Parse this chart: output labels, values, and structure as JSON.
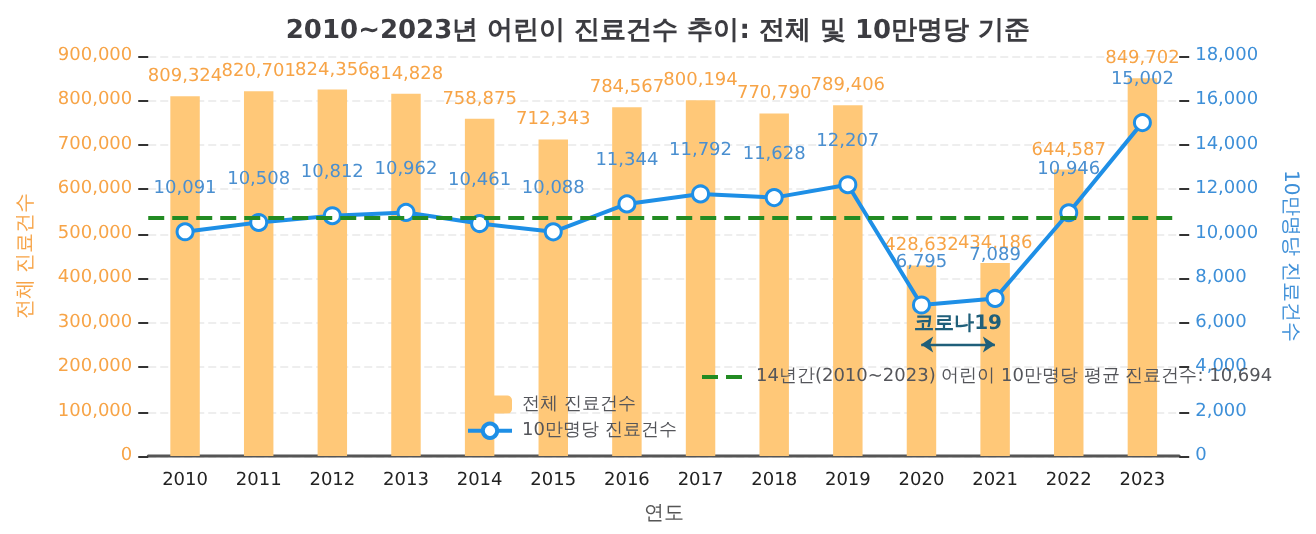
{
  "chart_data": {
    "type": "bar",
    "title": "2010~2023년 어린이 진료건수 추이: 전체 및 10만명당 기준",
    "xlabel": "연도",
    "ylabel": "전체 진료건수",
    "y2label": "10만명당 진료건수",
    "categories": [
      "2010",
      "2011",
      "2012",
      "2013",
      "2014",
      "2015",
      "2016",
      "2017",
      "2018",
      "2019",
      "2020",
      "2021",
      "2022",
      "2023"
    ],
    "series": [
      {
        "name": "전체 진료건수",
        "color": "#ffc878",
        "values": [
          809324,
          820701,
          824356,
          814828,
          758875,
          712343,
          784567,
          800194,
          770790,
          789406,
          428632,
          434186,
          644587,
          849702
        ],
        "value_labels": [
          "809,324",
          "820,701",
          "824,356",
          "814,828",
          "758,875",
          "712,343",
          "784,567",
          "800,194",
          "770,790",
          "789,406",
          "428,632",
          "434,186",
          "644,587",
          "849,702"
        ]
      },
      {
        "name": "10만명당 진료건수",
        "type": "line",
        "axis": "y2",
        "color": "#1e8fe6",
        "values": [
          10091,
          10508,
          10812,
          10962,
          10461,
          10088,
          11344,
          11792,
          11628,
          12207,
          6795,
          7089,
          10946,
          15002
        ],
        "value_labels": [
          "10,091",
          "10,508",
          "10,812",
          "10,962",
          "10,461",
          "10,088",
          "11,344",
          "11,792",
          "11,628",
          "12,207",
          "6,795",
          "7,089",
          "10,946",
          "15,002"
        ]
      }
    ],
    "ylim": [
      0,
      900000
    ],
    "yticks": [
      {
        "value": 0,
        "label": "0"
      },
      {
        "value": 100000,
        "label": "100,000"
      },
      {
        "value": 200000,
        "label": "200,000"
      },
      {
        "value": 300000,
        "label": "300,000"
      },
      {
        "value": 400000,
        "label": "400,000"
      },
      {
        "value": 500000,
        "label": "500,000"
      },
      {
        "value": 600000,
        "label": "600,000"
      },
      {
        "value": 700000,
        "label": "700,000"
      },
      {
        "value": 800000,
        "label": "800,000"
      },
      {
        "value": 900000,
        "label": "900,000"
      }
    ],
    "y2lim": [
      0,
      18000
    ],
    "y2ticks": [
      {
        "value": 0,
        "label": "0"
      },
      {
        "value": 2000,
        "label": "2,000"
      },
      {
        "value": 4000,
        "label": "4,000"
      },
      {
        "value": 6000,
        "label": "6,000"
      },
      {
        "value": 8000,
        "label": "8,000"
      },
      {
        "value": 10000,
        "label": "10,000"
      },
      {
        "value": 12000,
        "label": "12,000"
      },
      {
        "value": 14000,
        "label": "14,000"
      },
      {
        "value": 16000,
        "label": "16,000"
      },
      {
        "value": 18000,
        "label": "18,000"
      }
    ],
    "ref_lines": [
      {
        "axis": "y2",
        "value": 10694,
        "label": "14년간(2010~2023) 어린이 10만명당 평균 진료건수: 10,694",
        "color": "#228b22",
        "line_style": "dashed"
      }
    ],
    "annotations": [
      "코로나19"
    ],
    "grid": "y",
    "legend": "bottom right",
    "marker": "circle"
  }
}
